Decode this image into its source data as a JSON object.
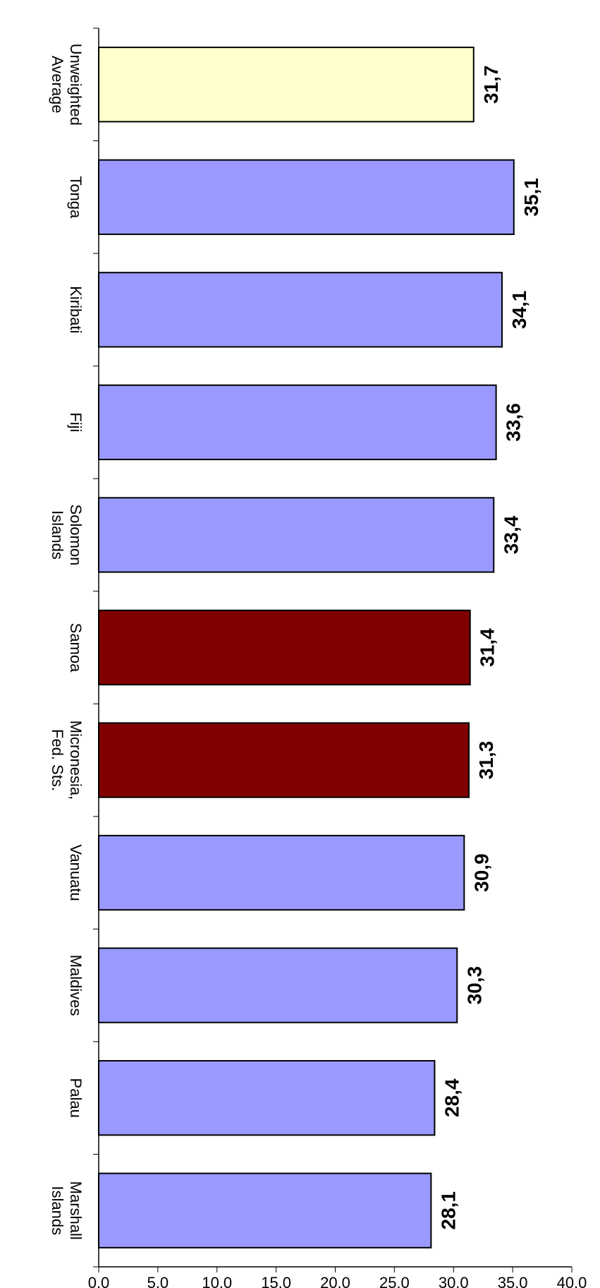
{
  "chart_data": {
    "type": "bar",
    "orientation": "horizontal",
    "title": "",
    "xlabel": "",
    "ylabel": "",
    "categories": [
      [
        "Marshall",
        "Islands"
      ],
      [
        "Palau"
      ],
      [
        "Maldives"
      ],
      [
        "Vanuatu"
      ],
      [
        "Micronesia,",
        "Fed. Sts."
      ],
      [
        "Samoa"
      ],
      [
        "Solomon",
        "Islands"
      ],
      [
        "Fiji"
      ],
      [
        "Kiribati"
      ],
      [
        "Tonga"
      ],
      [
        "Unweighted",
        "Average"
      ]
    ],
    "values": [
      28.1,
      28.4,
      30.3,
      30.9,
      31.3,
      31.4,
      33.4,
      33.6,
      34.1,
      35.1,
      31.7
    ],
    "value_labels": [
      "28,1",
      "28,4",
      "30,3",
      "30,9",
      "31,3",
      "31,4",
      "33,4",
      "33,6",
      "34,1",
      "35,1",
      "31,7"
    ],
    "bar_colors": [
      "#9999ff",
      "#9999ff",
      "#9999ff",
      "#9999ff",
      "#800000",
      "#800000",
      "#9999ff",
      "#9999ff",
      "#9999ff",
      "#9999ff",
      "#ffffcc"
    ],
    "value_axis": {
      "range": [
        0,
        40
      ],
      "ticks": [
        0,
        5,
        10,
        15,
        20,
        25,
        30,
        35,
        40
      ],
      "tick_labels": [
        "0,0",
        "5,0",
        "10,0",
        "15,0",
        "20,0",
        "25,0",
        "30,0",
        "35,0",
        "40,0"
      ]
    },
    "grid": false,
    "legend": "none",
    "rotation": "chart rotated 90 degrees clockwise"
  }
}
